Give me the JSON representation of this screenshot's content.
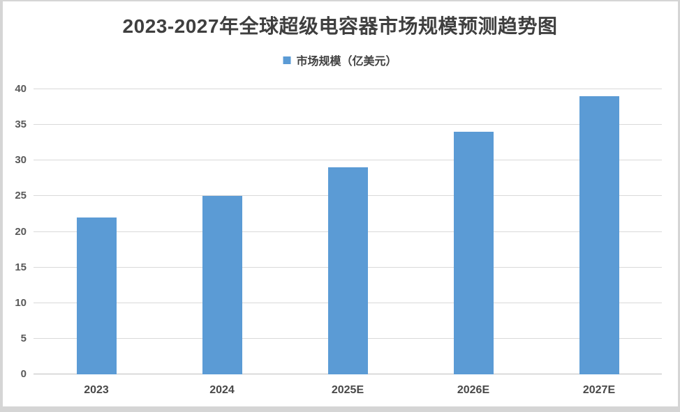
{
  "chart_data": {
    "type": "bar",
    "title": "2023-2027年全球超级电容器市场规模预测趋势图",
    "categories": [
      "2023",
      "2024",
      "2025E",
      "2026E",
      "2027E"
    ],
    "values": [
      22,
      25,
      29,
      34,
      39
    ],
    "series_name": "市场规模（亿美元）",
    "xlabel": "",
    "ylabel": "",
    "ylim": [
      0,
      40
    ],
    "ytick_step": 5,
    "ytick_labels": [
      "0",
      "5",
      "10",
      "15",
      "20",
      "25",
      "30",
      "35",
      "40"
    ],
    "grid": "horizontal",
    "legend_position": "top-center",
    "bar_color": "#5B9BD5",
    "gridline_color": "#D9D9D9",
    "baseline_color": "#BFBFBF",
    "tick_label_color": "#595959",
    "title_color": "#3F3F3F"
  }
}
